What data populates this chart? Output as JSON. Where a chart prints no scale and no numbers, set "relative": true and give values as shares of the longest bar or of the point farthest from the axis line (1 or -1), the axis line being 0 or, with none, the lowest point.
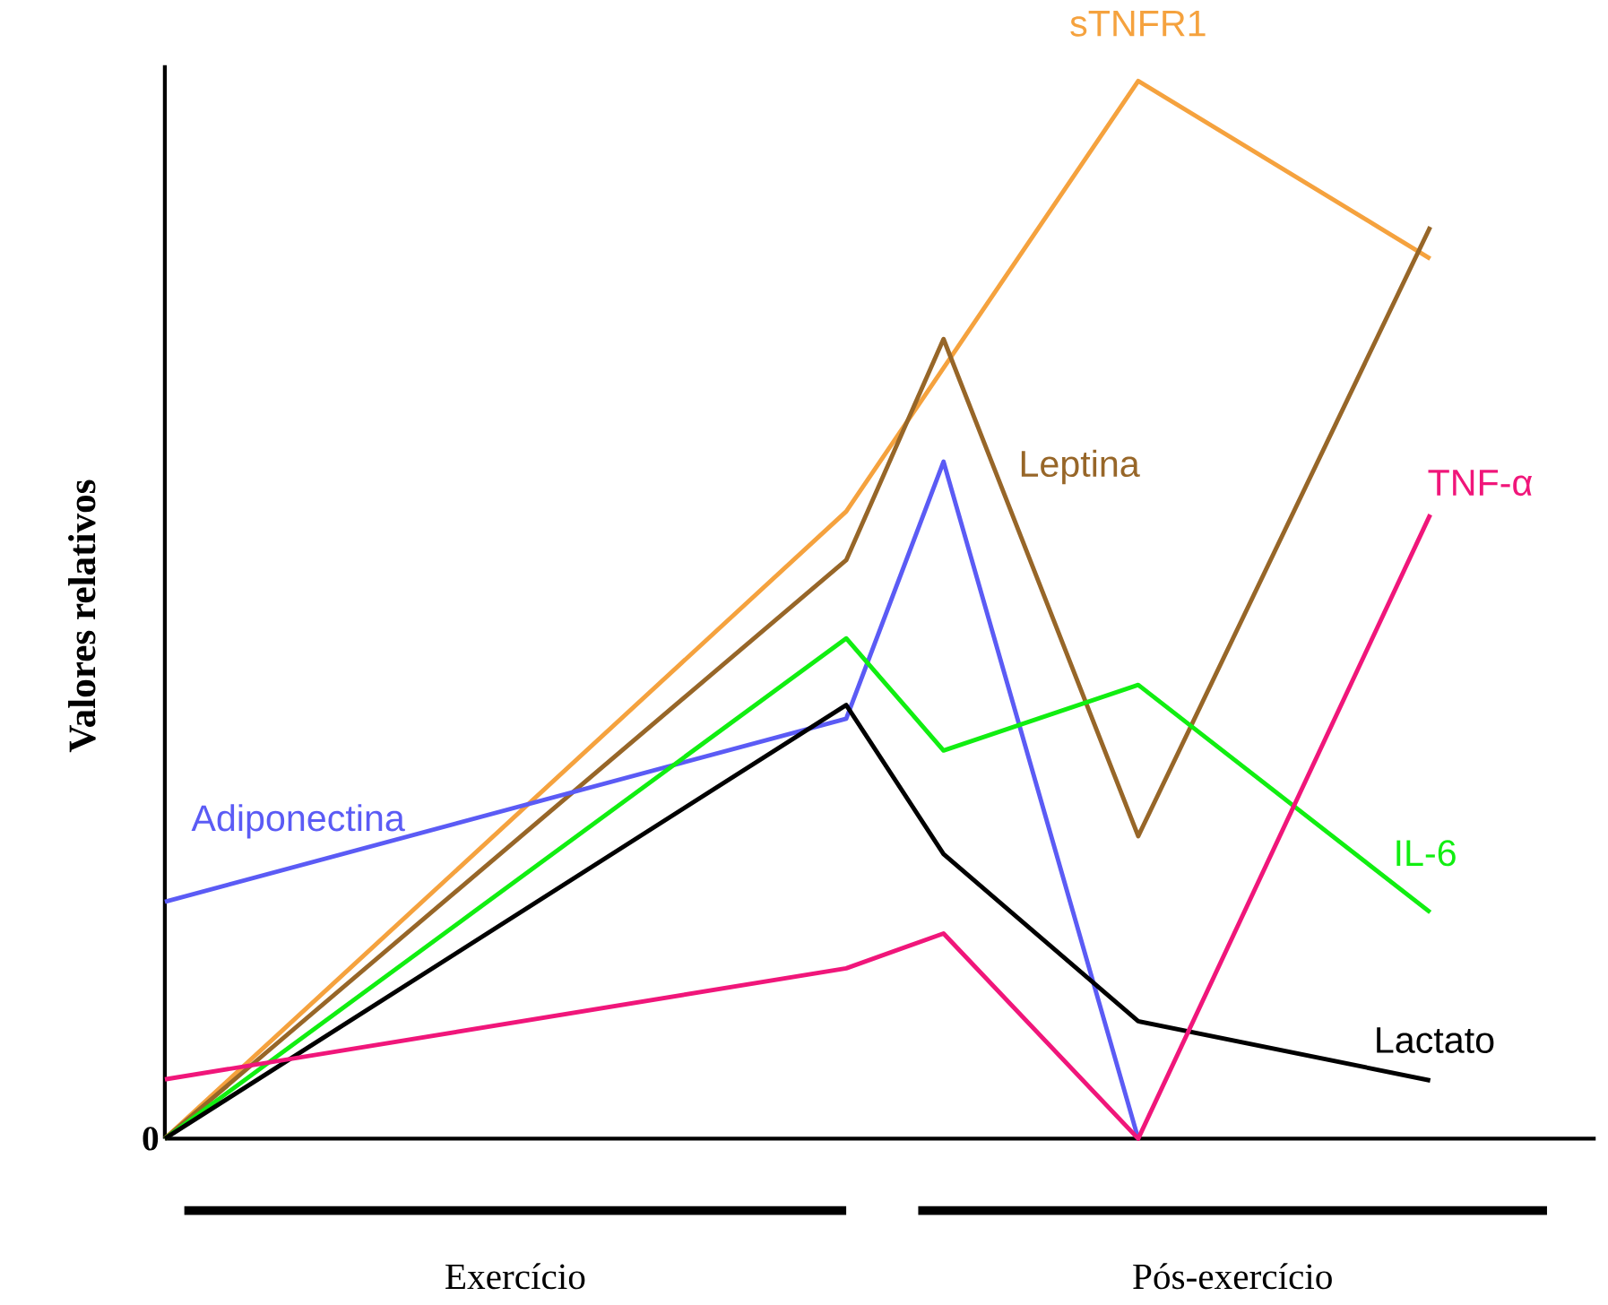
{
  "chart_data": {
    "type": "line",
    "relative": true,
    "ylabel": "Valores relativos",
    "categories": [
      null,
      null,
      null,
      null,
      null,
      null,
      null,
      null,
      null,
      null,
      null,
      null,
      null,
      null
    ],
    "annotations": [
      "0",
      "Exercício",
      "Pós-exercício"
    ],
    "series": [
      {
        "name": "sTNFR1",
        "color": "#f5a23e",
        "values": [
          0,
          null,
          null,
          null,
          null,
          null,
          null,
          0.593,
          null,
          null,
          1,
          null,
          null,
          0.832
        ]
      },
      {
        "name": "Leptina",
        "color": "#976628",
        "values": [
          0,
          null,
          null,
          null,
          null,
          null,
          null,
          0.547,
          0.756,
          null,
          0.286,
          null,
          null,
          0.862
        ]
      },
      {
        "name": "Adiponectina",
        "color": "#5b5bf5",
        "values": [
          0.224,
          null,
          null,
          null,
          null,
          null,
          null,
          0.397,
          0.64,
          null,
          0,
          null,
          null,
          null
        ]
      },
      {
        "name": "IL-6",
        "color": "#11ee11",
        "values": [
          0,
          null,
          null,
          null,
          null,
          null,
          null,
          0.473,
          0.367,
          null,
          0.429,
          null,
          null,
          0.214
        ]
      },
      {
        "name": "Lactato",
        "color": "#000000",
        "values": [
          0,
          null,
          null,
          null,
          null,
          null,
          null,
          0.41,
          0.269,
          null,
          0.111,
          null,
          null,
          0.055
        ]
      },
      {
        "name": "TNF-α",
        "color": "#f0167a",
        "values": [
          0.056,
          null,
          null,
          null,
          null,
          null,
          null,
          0.161,
          0.194,
          null,
          0,
          null,
          null,
          0.59
        ]
      }
    ]
  }
}
